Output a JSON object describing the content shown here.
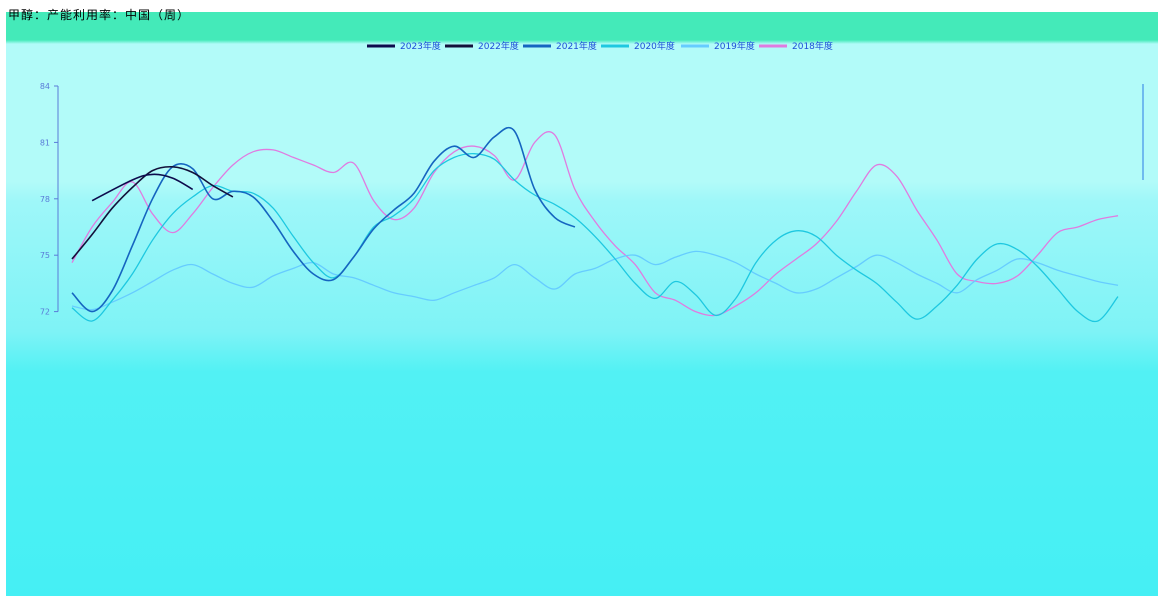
{
  "page": {
    "title": "甲醇：产能利用率：中国（周）"
  },
  "chart_data": {
    "type": "line",
    "title": "甲醇：产能利用率：中国（周）",
    "y_ticks": [
      84,
      81,
      78,
      75,
      72
    ],
    "y_range": [
      69,
      84
    ],
    "x_range": [
      1,
      53
    ],
    "grid": false,
    "legend_position": "top-center",
    "series": [
      {
        "name": "2023年度",
        "color": "#0d0b4d",
        "x": [
          2,
          4,
          5,
          6,
          7
        ],
        "y": [
          77.9,
          79.0,
          79.3,
          79.1,
          78.5
        ]
      },
      {
        "name": "2022年度",
        "color": "#13103a",
        "x": [
          1,
          2,
          3,
          4,
          5,
          6,
          7,
          8,
          9
        ],
        "y": [
          74.8,
          76.1,
          77.5,
          78.6,
          79.5,
          79.7,
          79.4,
          78.7,
          78.1
        ]
      },
      {
        "name": "2021年度",
        "color": "#1565c0",
        "x": [
          1,
          2,
          3,
          4,
          5,
          6,
          7,
          8,
          9,
          10,
          11,
          12,
          13,
          14,
          15,
          16,
          17,
          18,
          19,
          20,
          21,
          22,
          23,
          24,
          25,
          26
        ],
        "y": [
          73.0,
          72.0,
          73.1,
          75.5,
          78.0,
          79.7,
          79.6,
          78.0,
          78.4,
          78.1,
          76.8,
          75.2,
          74.0,
          73.7,
          74.9,
          76.4,
          77.4,
          78.3,
          80.0,
          80.8,
          80.2,
          81.3,
          81.6,
          78.5,
          77.0,
          76.5
        ]
      },
      {
        "name": "2020年度",
        "color": "#1ec8e0",
        "x": [
          1,
          2,
          3,
          4,
          5,
          6,
          7,
          8,
          9,
          10,
          11,
          12,
          13,
          14,
          15,
          16,
          17,
          18,
          19,
          20,
          21,
          22,
          23,
          24,
          25,
          26,
          27,
          28,
          29,
          30,
          31,
          32,
          33,
          34,
          35,
          36,
          37,
          38,
          39,
          40,
          41,
          42,
          43,
          44,
          45,
          46,
          47,
          48,
          49,
          50,
          51,
          52,
          53
        ],
        "y": [
          72.2,
          71.5,
          72.6,
          74.0,
          75.8,
          77.2,
          78.1,
          78.7,
          78.4,
          78.3,
          77.5,
          76.0,
          74.6,
          73.8,
          74.9,
          76.5,
          77.1,
          78.0,
          79.5,
          80.2,
          80.4,
          80.1,
          79.0,
          78.2,
          77.7,
          77.0,
          76.0,
          74.8,
          73.5,
          72.7,
          73.6,
          72.9,
          71.8,
          72.7,
          74.6,
          75.8,
          76.3,
          76.0,
          75.0,
          74.2,
          73.5,
          72.5,
          71.6,
          72.3,
          73.4,
          74.8,
          75.6,
          75.3,
          74.4,
          73.2,
          72.0,
          71.5,
          72.8
        ]
      },
      {
        "name": "2019年度",
        "color": "#66ccff",
        "x": [
          1,
          2,
          3,
          4,
          5,
          6,
          7,
          8,
          9,
          10,
          11,
          12,
          13,
          14,
          15,
          16,
          17,
          18,
          19,
          20,
          21,
          22,
          23,
          24,
          25,
          26,
          27,
          28,
          29,
          30,
          31,
          32,
          33,
          34,
          35,
          36,
          37,
          38,
          39,
          40,
          41,
          42,
          43,
          44,
          45,
          46,
          47,
          48,
          49,
          50,
          51,
          52,
          53
        ],
        "y": [
          72.3,
          72.1,
          72.5,
          73.0,
          73.6,
          74.2,
          74.5,
          74.0,
          73.5,
          73.3,
          73.9,
          74.3,
          74.6,
          74.0,
          73.8,
          73.4,
          73.0,
          72.8,
          72.6,
          73.0,
          73.4,
          73.8,
          74.5,
          73.8,
          73.2,
          74.0,
          74.3,
          74.8,
          75.0,
          74.5,
          74.9,
          75.2,
          75.0,
          74.6,
          74.0,
          73.5,
          73.0,
          73.2,
          73.8,
          74.4,
          75.0,
          74.6,
          74.0,
          73.5,
          73.0,
          73.7,
          74.2,
          74.8,
          74.6,
          74.2,
          73.9,
          73.6,
          73.4
        ]
      },
      {
        "name": "2018年度",
        "color": "#e07be0",
        "x": [
          1,
          2,
          3,
          4,
          5,
          6,
          7,
          8,
          9,
          10,
          11,
          12,
          13,
          14,
          15,
          16,
          17,
          18,
          19,
          20,
          21,
          22,
          23,
          24,
          25,
          26,
          27,
          28,
          29,
          30,
          31,
          32,
          33,
          34,
          35,
          36,
          37,
          38,
          39,
          40,
          41,
          42,
          43,
          44,
          45,
          46,
          47,
          48,
          49,
          50,
          51,
          52,
          53
        ],
        "y": [
          74.6,
          76.5,
          77.8,
          78.9,
          77.2,
          76.2,
          77.2,
          78.6,
          79.8,
          80.5,
          80.6,
          80.2,
          79.8,
          79.4,
          79.9,
          77.9,
          76.9,
          77.5,
          79.4,
          80.5,
          80.8,
          80.3,
          79.0,
          81.0,
          81.4,
          78.5,
          76.8,
          75.5,
          74.5,
          73.0,
          72.6,
          72.0,
          71.8,
          72.3,
          73.0,
          74.0,
          74.8,
          75.6,
          76.8,
          78.4,
          79.8,
          79.2,
          77.4,
          75.8,
          74.0,
          73.6,
          73.5,
          73.9,
          75.0,
          76.2,
          76.5,
          76.9,
          77.1
        ]
      }
    ]
  }
}
